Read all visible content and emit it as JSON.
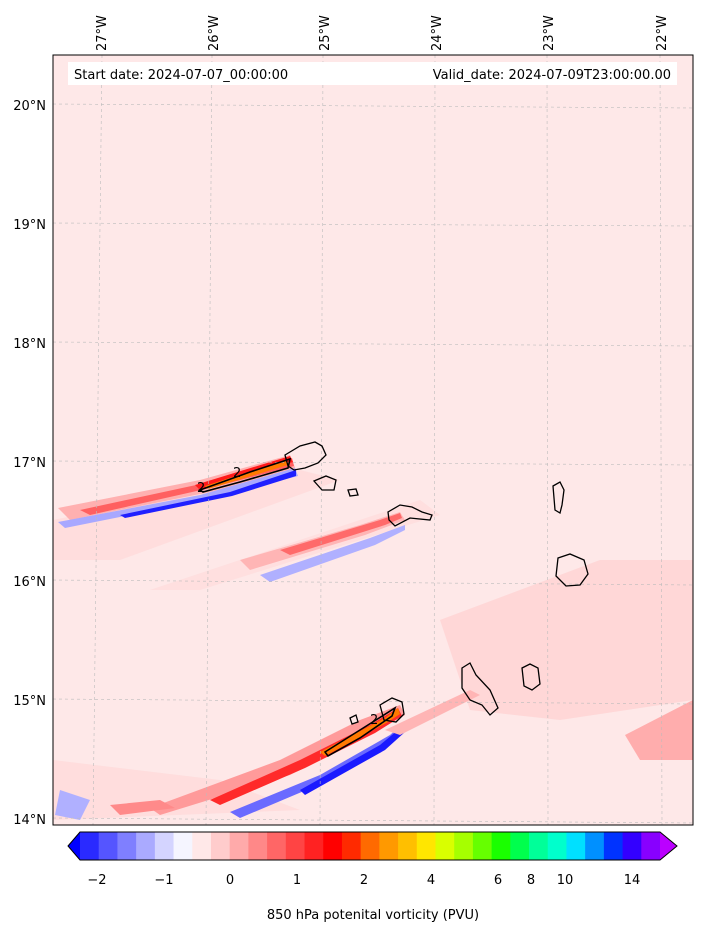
{
  "header": {
    "start_date": "Start date: 2024-07-07_00:00:00",
    "valid_date": "Valid_date: 2024-07-09T23:00:00.00"
  },
  "map": {
    "lon_labels": [
      "27°W",
      "26°W",
      "25°W",
      "24°W",
      "23°W",
      "22°W"
    ],
    "lat_labels": [
      "20°N",
      "19°N",
      "18°N",
      "17°N",
      "16°N",
      "15°N",
      "14°N"
    ],
    "background_color": "#fee8e8"
  },
  "colorbar": {
    "tick_labels": [
      "−2",
      "−1",
      "0",
      "1",
      "2",
      "4",
      "6",
      "8",
      "10",
      "14"
    ],
    "label": "850 hPa potenital vorticity (PVU)",
    "colors": [
      "#0000ff",
      "#2a2aff",
      "#5555ff",
      "#7f7fff",
      "#aaaaff",
      "#d4d4ff",
      "#f5f5ff",
      "#ffe8e8",
      "#ffcccc",
      "#ffaaaa",
      "#ff8888",
      "#ff6666",
      "#ff4444",
      "#ff2222",
      "#ff0000",
      "#ff2a00",
      "#ff6a00",
      "#ff9900",
      "#ffbf00",
      "#ffe600",
      "#d9ff00",
      "#a6ff00",
      "#66ff00",
      "#1aff00",
      "#00ff4d",
      "#00ff99",
      "#00ffcc",
      "#00e0ff",
      "#0090ff",
      "#0033ff",
      "#3300ff",
      "#8800ff",
      "#bb00ff"
    ]
  },
  "contour_labels": [
    "2",
    "2",
    "2"
  ]
}
